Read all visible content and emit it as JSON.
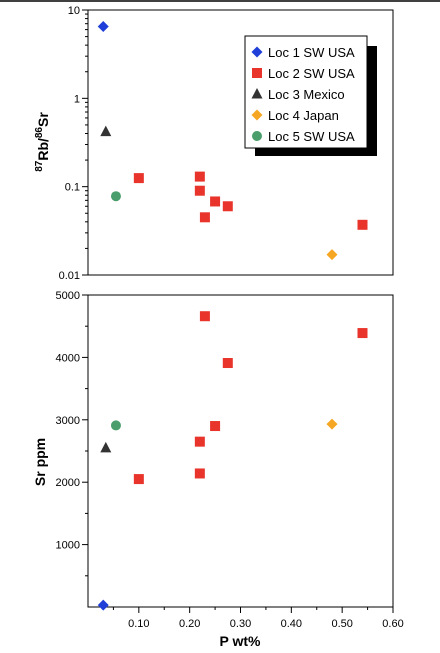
{
  "colors": {
    "loc1": "#1f3fd8",
    "loc2": "#e8342a",
    "loc3": "#333333",
    "loc4": "#f5a623",
    "loc5": "#4a9e6b"
  },
  "legend": {
    "placement": "top-right",
    "entries": [
      {
        "label": "Loc 1 SW USA",
        "marker": "diamond",
        "color": "#1f3fd8"
      },
      {
        "label": "Loc 2 SW USA",
        "marker": "square",
        "color": "#e8342a"
      },
      {
        "label": "Loc 3 Mexico",
        "marker": "triangle",
        "color": "#333333"
      },
      {
        "label": "Loc 4 Japan",
        "marker": "diamond",
        "color": "#f5a623"
      },
      {
        "label": "Loc 5 SW USA",
        "marker": "circle",
        "color": "#4a9e6b"
      }
    ]
  },
  "chart_data": [
    {
      "type": "scatter",
      "panel": "top",
      "title": "",
      "ylabel": "87Rb/86Sr",
      "ylabel_parts": {
        "sup1": "87",
        "main1": "Rb/",
        "sup2": "86",
        "main2": "Sr"
      },
      "xlabel": "",
      "yscale": "log",
      "ylim": [
        0.01,
        10
      ],
      "xlim": [
        0.0,
        0.6
      ],
      "ytick_labels": [
        "0.01",
        "0.1",
        "1",
        "10"
      ],
      "grid": false,
      "series": [
        {
          "name": "Loc 1 SW USA",
          "marker": "diamond",
          "points": [
            {
              "x": 0.03,
              "y": 6.5
            }
          ]
        },
        {
          "name": "Loc 2 SW USA",
          "marker": "square",
          "points": [
            {
              "x": 0.1,
              "y": 0.125
            },
            {
              "x": 0.22,
              "y": 0.13
            },
            {
              "x": 0.22,
              "y": 0.09
            },
            {
              "x": 0.25,
              "y": 0.068
            },
            {
              "x": 0.23,
              "y": 0.045
            },
            {
              "x": 0.275,
              "y": 0.06
            },
            {
              "x": 0.54,
              "y": 0.037
            }
          ]
        },
        {
          "name": "Loc 3 Mexico",
          "marker": "triangle",
          "points": [
            {
              "x": 0.035,
              "y": 0.42
            }
          ]
        },
        {
          "name": "Loc 4 Japan",
          "marker": "diamond",
          "points": [
            {
              "x": 0.48,
              "y": 0.017
            }
          ]
        },
        {
          "name": "Loc 5 SW USA",
          "marker": "circle",
          "points": [
            {
              "x": 0.055,
              "y": 0.078
            }
          ]
        }
      ]
    },
    {
      "type": "scatter",
      "panel": "bottom",
      "title": "",
      "ylabel": "Sr ppm",
      "xlabel": "P wt%",
      "yscale": "linear",
      "ylim": [
        0,
        5000
      ],
      "xlim": [
        0.0,
        0.6
      ],
      "ytick_labels": [
        "1000",
        "2000",
        "3000",
        "4000",
        "5000"
      ],
      "xtick_labels": [
        "0.10",
        "0.20",
        "0.30",
        "0.40",
        "0.50",
        "0.60"
      ],
      "grid": false,
      "series": [
        {
          "name": "Loc 1 SW USA",
          "marker": "diamond",
          "points": [
            {
              "x": 0.03,
              "y": 30
            }
          ]
        },
        {
          "name": "Loc 2 SW USA",
          "marker": "square",
          "points": [
            {
              "x": 0.1,
              "y": 2050
            },
            {
              "x": 0.22,
              "y": 2650
            },
            {
              "x": 0.22,
              "y": 2140
            },
            {
              "x": 0.25,
              "y": 2900
            },
            {
              "x": 0.23,
              "y": 4660
            },
            {
              "x": 0.275,
              "y": 3910
            },
            {
              "x": 0.54,
              "y": 4390
            }
          ]
        },
        {
          "name": "Loc 3 Mexico",
          "marker": "triangle",
          "points": [
            {
              "x": 0.035,
              "y": 2550
            }
          ]
        },
        {
          "name": "Loc 4 Japan",
          "marker": "diamond",
          "points": [
            {
              "x": 0.48,
              "y": 2930
            }
          ]
        },
        {
          "name": "Loc 5 SW USA",
          "marker": "circle",
          "points": [
            {
              "x": 0.055,
              "y": 2910
            }
          ]
        }
      ]
    }
  ]
}
